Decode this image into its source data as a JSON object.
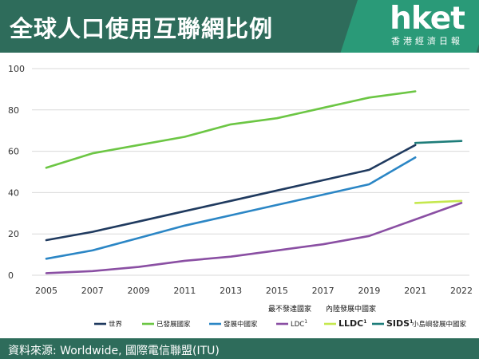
{
  "header": {
    "title": "全球人口使用互聯網比例",
    "logo_text": "hket",
    "logo_sub": "香港經濟日報",
    "colors": {
      "header_bg": "#2e6c5b",
      "logo_bg": "#2a9a78"
    }
  },
  "footer": {
    "source": "資料來源: Worldwide, 國際電信聯盟(ITU)"
  },
  "chart_data": {
    "type": "line",
    "title": "",
    "xlabel": "",
    "ylabel": "",
    "x": [
      "2005",
      "2007",
      "2009",
      "2011",
      "2013",
      "2015",
      "2017",
      "2019",
      "2021",
      "2022"
    ],
    "ylim": [
      0,
      100
    ],
    "yticks": [
      0,
      20,
      40,
      60,
      80,
      100
    ],
    "grid": "horizontal",
    "group_labels": [
      "最不發達國家",
      "內陸發展中國家"
    ],
    "series": [
      {
        "name": "世界",
        "color": "#1f3a5f",
        "sup": "",
        "values": [
          17,
          21,
          26,
          31,
          36,
          41,
          46,
          51,
          63,
          null
        ]
      },
      {
        "name": "已發展國家",
        "color": "#6cc644",
        "sup": "",
        "values": [
          52,
          59,
          63,
          67,
          73,
          76,
          81,
          86,
          89,
          null
        ]
      },
      {
        "name": "發展中國家",
        "color": "#2b86c5",
        "sup": "",
        "values": [
          8,
          12,
          18,
          24,
          29,
          34,
          39,
          44,
          57,
          null
        ]
      },
      {
        "name": "LDC",
        "color": "#8a4fa3",
        "sup": "1",
        "values": [
          1,
          2,
          4,
          7,
          9,
          12,
          15,
          19,
          27,
          35
        ]
      },
      {
        "name": "LLDC",
        "color": "#c5e84e",
        "sup": "1",
        "values": [
          null,
          null,
          null,
          null,
          null,
          null,
          null,
          null,
          35,
          36
        ]
      },
      {
        "name": "SIDS",
        "color": "#1e7d7a",
        "sup": "1",
        "values": [
          null,
          null,
          null,
          null,
          null,
          null,
          null,
          null,
          64,
          65
        ]
      }
    ],
    "extra_label": "小島嶼發展中國家"
  }
}
